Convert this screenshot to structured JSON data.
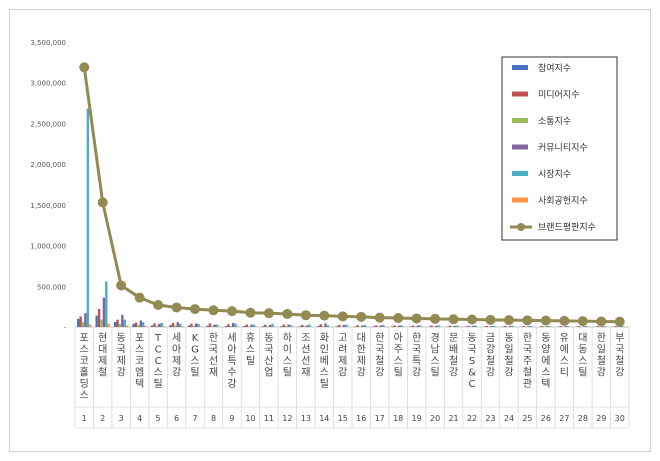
{
  "chart_data": {
    "type": "bar",
    "title": "",
    "xlabel": "",
    "ylabel": "",
    "ylim": [
      0,
      3500000
    ],
    "yticks": [
      0,
      500000,
      1000000,
      1500000,
      2000000,
      2500000,
      3000000,
      3500000
    ],
    "ytick_labels": [
      "-",
      "500,000",
      "1,000,000",
      "1,500,000",
      "2,000,000",
      "2,500,000",
      "3,000,000",
      "3,500,000"
    ],
    "grid": true,
    "legend_position": "top-right",
    "categories": [
      "포스코홀딩스",
      "현대제철",
      "동국제강",
      "포스코엠텍",
      "TCC스틸",
      "세아제강",
      "KG스틸",
      "한국선재",
      "세아특수강",
      "휴스틸",
      "동국산업",
      "하이스틸",
      "조선선재",
      "화인베스틸",
      "고려제강",
      "대한제강",
      "한국철강",
      "아주스틸",
      "한국특강",
      "경남스틸",
      "문배철강",
      "동국S&C",
      "금강철강",
      "동일철강",
      "한국주철관",
      "동양에스텍",
      "유에스티",
      "대동스틸",
      "한일철강",
      "부국철강"
    ],
    "ranks": [
      "1",
      "2",
      "3",
      "4",
      "5",
      "6",
      "7",
      "8",
      "9",
      "10",
      "11",
      "12",
      "13",
      "14",
      "15",
      "16",
      "17",
      "18",
      "19",
      "20",
      "21",
      "22",
      "23",
      "24",
      "25",
      "26",
      "27",
      "28",
      "29",
      "30"
    ],
    "series": [
      {
        "name": "참여지수",
        "color": "#4472c4",
        "kind": "bar",
        "values": [
          100000,
          140000,
          60000,
          40000,
          20000,
          25000,
          18000,
          15000,
          12000,
          12000,
          10000,
          10000,
          8000,
          10000,
          8000,
          8000,
          7000,
          7000,
          6000,
          6000,
          6000,
          5000,
          5000,
          5000,
          4000,
          4000,
          4000,
          4000,
          3000,
          3000
        ]
      },
      {
        "name": "미디어지수",
        "color": "#c0504d",
        "kind": "bar",
        "values": [
          130000,
          220000,
          90000,
          55000,
          45000,
          50000,
          40000,
          45000,
          35000,
          30000,
          28000,
          30000,
          25000,
          35000,
          25000,
          22000,
          20000,
          20000,
          18000,
          18000,
          15000,
          15000,
          14000,
          14000,
          12000,
          12000,
          11000,
          11000,
          10000,
          10000
        ]
      },
      {
        "name": "소통지수",
        "color": "#9bbb59",
        "kind": "bar",
        "values": [
          60000,
          90000,
          40000,
          25000,
          18000,
          20000,
          15000,
          14000,
          12000,
          10000,
          9000,
          9000,
          8000,
          10000,
          8000,
          7000,
          7000,
          6000,
          6000,
          6000,
          5000,
          5000,
          5000,
          4000,
          4000,
          4000,
          4000,
          3000,
          3000,
          3000
        ]
      },
      {
        "name": "커뮤니티지수",
        "color": "#8064a2",
        "kind": "bar",
        "values": [
          170000,
          360000,
          150000,
          80000,
          40000,
          60000,
          45000,
          30000,
          50000,
          30000,
          25000,
          30000,
          20000,
          45000,
          25000,
          20000,
          20000,
          18000,
          18000,
          15000,
          15000,
          15000,
          12000,
          12000,
          10000,
          10000,
          10000,
          9000,
          8000,
          8000
        ]
      },
      {
        "name": "시장지수",
        "color": "#4bacc6",
        "kind": "bar",
        "values": [
          2680000,
          560000,
          90000,
          60000,
          50000,
          40000,
          35000,
          30000,
          40000,
          30000,
          40000,
          25000,
          30000,
          20000,
          30000,
          25000,
          25000,
          20000,
          20000,
          20000,
          18000,
          18000,
          15000,
          15000,
          15000,
          12000,
          12000,
          12000,
          10000,
          10000
        ]
      },
      {
        "name": "사회공헌지수",
        "color": "#f79646",
        "kind": "bar",
        "values": [
          30000,
          40000,
          20000,
          15000,
          10000,
          10000,
          8000,
          8000,
          8000,
          7000,
          6000,
          6000,
          5000,
          6000,
          5000,
          5000,
          5000,
          4000,
          4000,
          4000,
          3000,
          3000,
          3000,
          3000,
          3000,
          3000,
          2000,
          2000,
          2000,
          2000
        ]
      },
      {
        "name": "브랜드평판지수",
        "color": "#938953",
        "kind": "line",
        "values": [
          3190000,
          1530000,
          510000,
          360000,
          270000,
          240000,
          220000,
          205000,
          195000,
          175000,
          170000,
          160000,
          145000,
          140000,
          130000,
          125000,
          115000,
          110000,
          105000,
          100000,
          95000,
          92000,
          88000,
          85000,
          82000,
          78000,
          75000,
          72000,
          68000,
          65000
        ]
      }
    ]
  }
}
